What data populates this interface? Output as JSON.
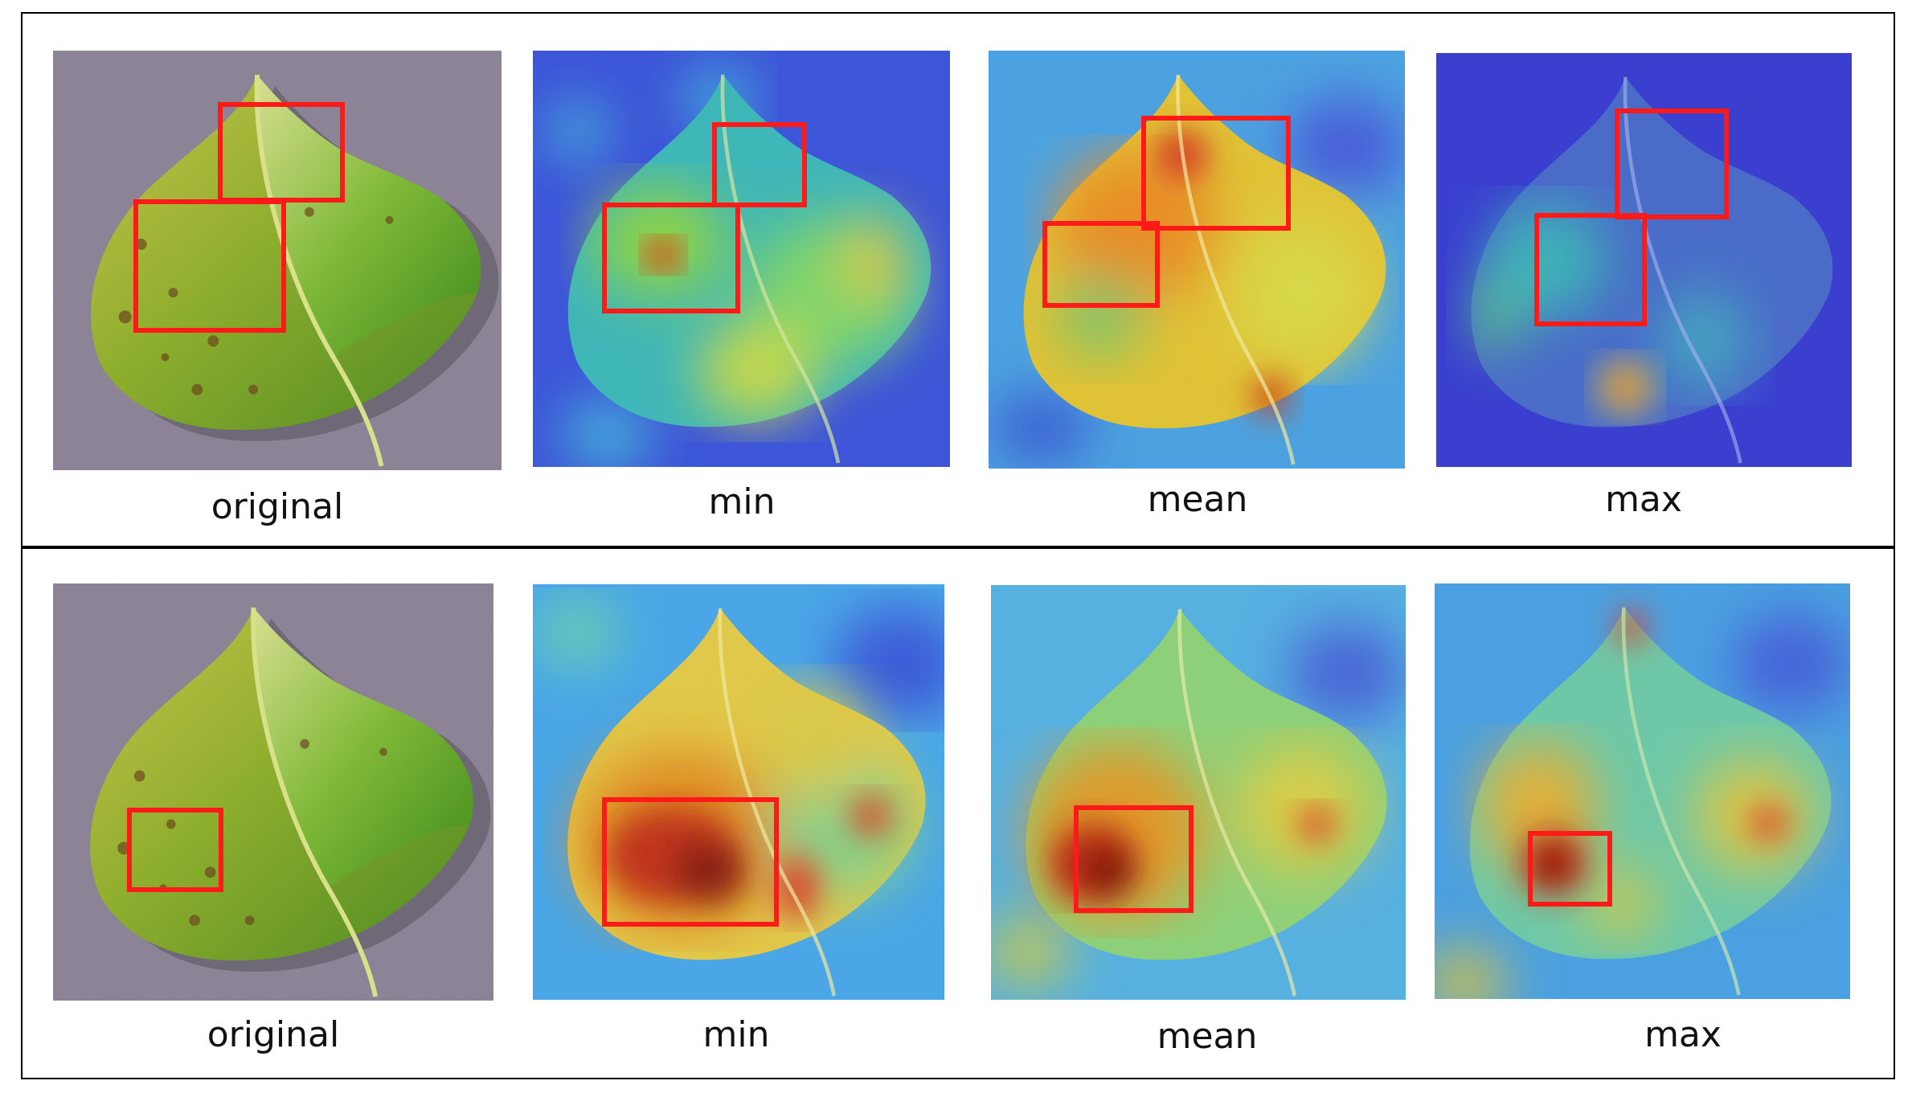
{
  "figure": {
    "rows": [
      {
        "id": "row-1",
        "panels": [
          {
            "caption": "original",
            "kind": "photo"
          },
          {
            "caption": "min",
            "kind": "heatmap-cool"
          },
          {
            "caption": "mean",
            "kind": "heatmap-warm"
          },
          {
            "caption": "max",
            "kind": "heatmap-blue"
          }
        ]
      },
      {
        "id": "row-2",
        "panels": [
          {
            "caption": "original",
            "kind": "photo"
          },
          {
            "caption": "min",
            "kind": "heatmap-hot"
          },
          {
            "caption": "mean",
            "kind": "heatmap-hot"
          },
          {
            "caption": "max",
            "kind": "heatmap-spot"
          }
        ]
      }
    ],
    "colors": {
      "highlight_box": "#ff1a1a",
      "frame": "#000000",
      "background_photo": "#8f8799",
      "heatmap_low": "#3b4fd6",
      "heatmap_mid": "#3ad1c8",
      "heatmap_high": "#d63a1e"
    }
  }
}
